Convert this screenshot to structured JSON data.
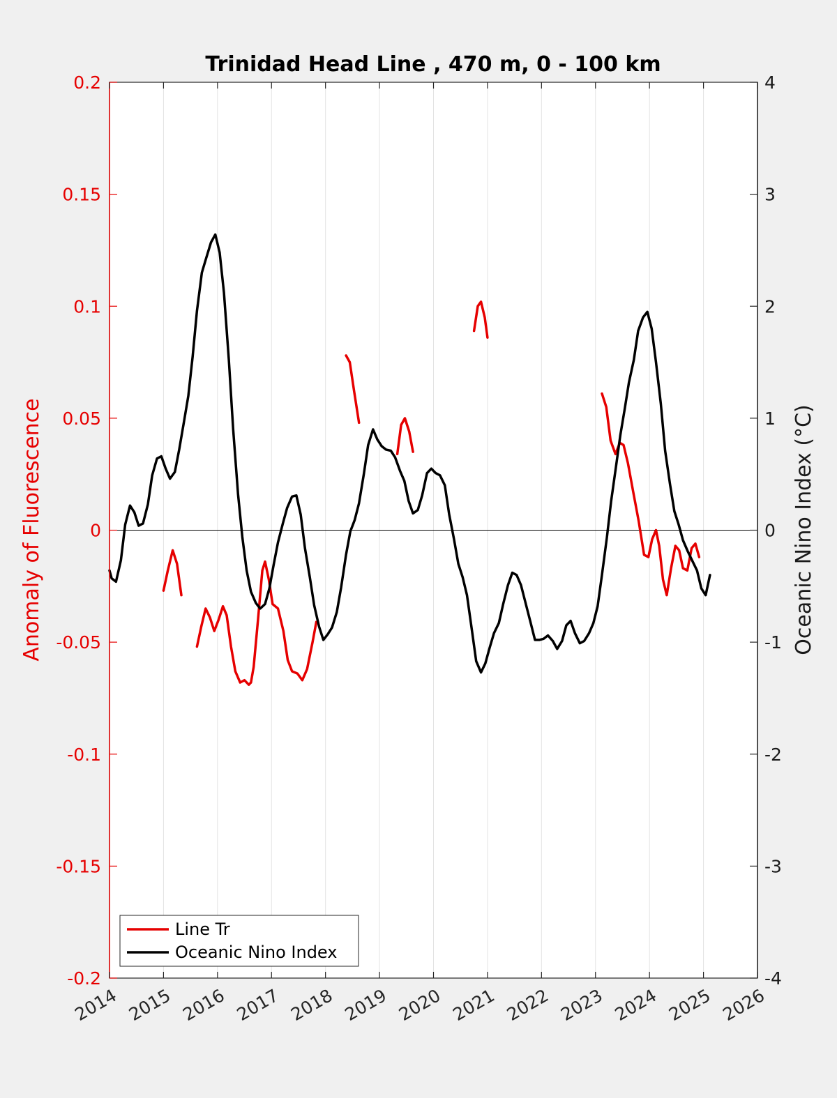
{
  "chart_data": {
    "type": "line",
    "title": "Trinidad Head Line , 470 m, 0 - 100 km",
    "ylabel": "Anomaly of Fluorescence",
    "y2label": "Oceanic Nino Index (°C)",
    "xlim": [
      2014,
      2026
    ],
    "ylim": [
      -0.2,
      0.2
    ],
    "y2lim": [
      -4,
      4
    ],
    "xticks": [
      "2014",
      "2015",
      "2016",
      "2017",
      "2018",
      "2019",
      "2020",
      "2021",
      "2022",
      "2023",
      "2024",
      "2025",
      "2026"
    ],
    "yticks": [
      "0.2",
      "0.15",
      "0.1",
      "0.05",
      "0",
      "-0.05",
      "-0.1",
      "-0.15",
      "-0.2"
    ],
    "y2ticks": [
      "4",
      "3",
      "2",
      "1",
      "0",
      "-1",
      "-2",
      "-3",
      "-4"
    ],
    "grid": "vertical",
    "zero_line": true,
    "legend": {
      "placement": "bottom-left",
      "entries": [
        "Line Tr",
        "Oceanic Nino Index"
      ]
    },
    "colors": {
      "line_tr": "#e60000",
      "oni": "#000000",
      "left_axis": "#e60000",
      "right_axis": "#1a1a1a"
    },
    "series": [
      {
        "name": "Line Tr",
        "axis": "left",
        "color": "#e60000",
        "segments": [
          [
            [
              2015.0,
              -0.027
            ],
            [
              2015.08,
              -0.018
            ],
            [
              2015.17,
              -0.009
            ],
            [
              2015.25,
              -0.015
            ],
            [
              2015.33,
              -0.029
            ]
          ],
          [
            [
              2015.62,
              -0.052
            ],
            [
              2015.7,
              -0.043
            ],
            [
              2015.78,
              -0.035
            ],
            [
              2015.86,
              -0.039
            ],
            [
              2015.94,
              -0.045
            ],
            [
              2016.02,
              -0.04
            ],
            [
              2016.1,
              -0.034
            ],
            [
              2016.17,
              -0.038
            ],
            [
              2016.25,
              -0.052
            ],
            [
              2016.33,
              -0.063
            ],
            [
              2016.42,
              -0.068
            ],
            [
              2016.5,
              -0.067
            ],
            [
              2016.58,
              -0.069
            ],
            [
              2016.62,
              -0.068
            ],
            [
              2016.67,
              -0.061
            ],
            [
              2016.75,
              -0.04
            ],
            [
              2016.83,
              -0.018
            ],
            [
              2016.88,
              -0.014
            ],
            [
              2016.95,
              -0.022
            ],
            [
              2017.02,
              -0.033
            ],
            [
              2017.12,
              -0.035
            ],
            [
              2017.22,
              -0.045
            ],
            [
              2017.3,
              -0.058
            ],
            [
              2017.38,
              -0.063
            ],
            [
              2017.48,
              -0.064
            ],
            [
              2017.57,
              -0.067
            ],
            [
              2017.66,
              -0.062
            ],
            [
              2017.76,
              -0.05
            ],
            [
              2017.83,
              -0.041
            ]
          ],
          [
            [
              2018.38,
              0.078
            ],
            [
              2018.45,
              0.075
            ],
            [
              2018.53,
              0.062
            ],
            [
              2018.62,
              0.048
            ]
          ],
          [
            [
              2019.33,
              0.034
            ],
            [
              2019.4,
              0.047
            ],
            [
              2019.47,
              0.05
            ],
            [
              2019.55,
              0.044
            ],
            [
              2019.62,
              0.035
            ]
          ],
          [
            [
              2020.75,
              0.089
            ],
            [
              2020.82,
              0.1
            ],
            [
              2020.88,
              0.102
            ],
            [
              2020.95,
              0.095
            ],
            [
              2021.0,
              0.086
            ]
          ],
          [
            [
              2023.12,
              0.061
            ],
            [
              2023.2,
              0.055
            ],
            [
              2023.28,
              0.04
            ],
            [
              2023.37,
              0.034
            ],
            [
              2023.45,
              0.039
            ],
            [
              2023.52,
              0.038
            ],
            [
              2023.6,
              0.03
            ],
            [
              2023.7,
              0.017
            ],
            [
              2023.8,
              0.004
            ],
            [
              2023.9,
              -0.011
            ],
            [
              2023.98,
              -0.012
            ],
            [
              2024.05,
              -0.004
            ],
            [
              2024.12,
              0.0
            ],
            [
              2024.18,
              -0.007
            ],
            [
              2024.25,
              -0.022
            ],
            [
              2024.32,
              -0.029
            ],
            [
              2024.4,
              -0.017
            ],
            [
              2024.48,
              -0.007
            ],
            [
              2024.55,
              -0.009
            ],
            [
              2024.62,
              -0.017
            ],
            [
              2024.7,
              -0.018
            ],
            [
              2024.78,
              -0.008
            ],
            [
              2024.85,
              -0.006
            ],
            [
              2024.92,
              -0.012
            ]
          ]
        ]
      },
      {
        "name": "Oceanic Nino Index",
        "axis": "right",
        "color": "#000000",
        "segments": [
          [
            [
              2014.0,
              -0.36
            ],
            [
              2014.04,
              -0.43
            ],
            [
              2014.12,
              -0.46
            ],
            [
              2014.21,
              -0.27
            ],
            [
              2014.29,
              0.05
            ],
            [
              2014.38,
              0.22
            ],
            [
              2014.46,
              0.16
            ],
            [
              2014.54,
              0.04
            ],
            [
              2014.62,
              0.06
            ],
            [
              2014.71,
              0.23
            ],
            [
              2014.79,
              0.49
            ],
            [
              2014.88,
              0.64
            ],
            [
              2014.96,
              0.66
            ],
            [
              2015.04,
              0.55
            ],
            [
              2015.12,
              0.46
            ],
            [
              2015.21,
              0.52
            ],
            [
              2015.29,
              0.72
            ],
            [
              2015.38,
              0.97
            ],
            [
              2015.46,
              1.2
            ],
            [
              2015.54,
              1.55
            ],
            [
              2015.62,
              1.96
            ],
            [
              2015.71,
              2.3
            ],
            [
              2015.79,
              2.43
            ],
            [
              2015.88,
              2.57
            ],
            [
              2015.96,
              2.64
            ],
            [
              2016.04,
              2.48
            ],
            [
              2016.12,
              2.12
            ],
            [
              2016.21,
              1.52
            ],
            [
              2016.29,
              0.9
            ],
            [
              2016.38,
              0.32
            ],
            [
              2016.46,
              -0.06
            ],
            [
              2016.54,
              -0.36
            ],
            [
              2016.62,
              -0.55
            ],
            [
              2016.71,
              -0.65
            ],
            [
              2016.79,
              -0.7
            ],
            [
              2016.88,
              -0.66
            ],
            [
              2016.96,
              -0.52
            ],
            [
              2017.04,
              -0.31
            ],
            [
              2017.12,
              -0.11
            ],
            [
              2017.21,
              0.06
            ],
            [
              2017.29,
              0.2
            ],
            [
              2017.38,
              0.3
            ],
            [
              2017.46,
              0.31
            ],
            [
              2017.54,
              0.14
            ],
            [
              2017.62,
              -0.16
            ],
            [
              2017.71,
              -0.42
            ],
            [
              2017.79,
              -0.67
            ],
            [
              2017.88,
              -0.86
            ],
            [
              2017.96,
              -0.98
            ],
            [
              2018.04,
              -0.93
            ],
            [
              2018.12,
              -0.87
            ],
            [
              2018.21,
              -0.73
            ],
            [
              2018.29,
              -0.51
            ],
            [
              2018.38,
              -0.22
            ],
            [
              2018.46,
              -0.01
            ],
            [
              2018.54,
              0.09
            ],
            [
              2018.62,
              0.24
            ],
            [
              2018.71,
              0.5
            ],
            [
              2018.79,
              0.76
            ],
            [
              2018.88,
              0.9
            ],
            [
              2018.96,
              0.81
            ],
            [
              2019.04,
              0.75
            ],
            [
              2019.12,
              0.72
            ],
            [
              2019.21,
              0.71
            ],
            [
              2019.29,
              0.65
            ],
            [
              2019.38,
              0.53
            ],
            [
              2019.46,
              0.44
            ],
            [
              2019.54,
              0.26
            ],
            [
              2019.62,
              0.15
            ],
            [
              2019.71,
              0.18
            ],
            [
              2019.79,
              0.31
            ],
            [
              2019.88,
              0.51
            ],
            [
              2019.96,
              0.55
            ],
            [
              2020.04,
              0.51
            ],
            [
              2020.12,
              0.49
            ],
            [
              2020.21,
              0.4
            ],
            [
              2020.29,
              0.14
            ],
            [
              2020.38,
              -0.08
            ],
            [
              2020.46,
              -0.3
            ],
            [
              2020.54,
              -0.42
            ],
            [
              2020.62,
              -0.58
            ],
            [
              2020.71,
              -0.89
            ],
            [
              2020.79,
              -1.17
            ],
            [
              2020.88,
              -1.27
            ],
            [
              2020.96,
              -1.19
            ],
            [
              2021.04,
              -1.05
            ],
            [
              2021.12,
              -0.92
            ],
            [
              2021.21,
              -0.83
            ],
            [
              2021.29,
              -0.66
            ],
            [
              2021.38,
              -0.49
            ],
            [
              2021.46,
              -0.38
            ],
            [
              2021.54,
              -0.4
            ],
            [
              2021.62,
              -0.49
            ],
            [
              2021.71,
              -0.66
            ],
            [
              2021.79,
              -0.81
            ],
            [
              2021.88,
              -0.98
            ],
            [
              2021.96,
              -0.98
            ],
            [
              2022.04,
              -0.97
            ],
            [
              2022.12,
              -0.94
            ],
            [
              2022.21,
              -0.99
            ],
            [
              2022.29,
              -1.06
            ],
            [
              2022.38,
              -0.99
            ],
            [
              2022.46,
              -0.85
            ],
            [
              2022.54,
              -0.81
            ],
            [
              2022.62,
              -0.92
            ],
            [
              2022.71,
              -1.01
            ],
            [
              2022.79,
              -0.99
            ],
            [
              2022.88,
              -0.92
            ],
            [
              2022.96,
              -0.83
            ],
            [
              2023.04,
              -0.68
            ],
            [
              2023.12,
              -0.4
            ],
            [
              2023.21,
              -0.07
            ],
            [
              2023.29,
              0.26
            ],
            [
              2023.38,
              0.57
            ],
            [
              2023.46,
              0.85
            ],
            [
              2023.54,
              1.08
            ],
            [
              2023.62,
              1.32
            ],
            [
              2023.71,
              1.52
            ],
            [
              2023.79,
              1.78
            ],
            [
              2023.88,
              1.9
            ],
            [
              2023.96,
              1.95
            ],
            [
              2024.04,
              1.8
            ],
            [
              2024.12,
              1.5
            ],
            [
              2024.21,
              1.13
            ],
            [
              2024.29,
              0.71
            ],
            [
              2024.38,
              0.41
            ],
            [
              2024.46,
              0.17
            ],
            [
              2024.54,
              0.05
            ],
            [
              2024.62,
              -0.09
            ],
            [
              2024.71,
              -0.19
            ],
            [
              2024.79,
              -0.27
            ],
            [
              2024.88,
              -0.36
            ],
            [
              2024.96,
              -0.52
            ],
            [
              2025.04,
              -0.58
            ],
            [
              2025.12,
              -0.4
            ]
          ]
        ]
      }
    ]
  }
}
